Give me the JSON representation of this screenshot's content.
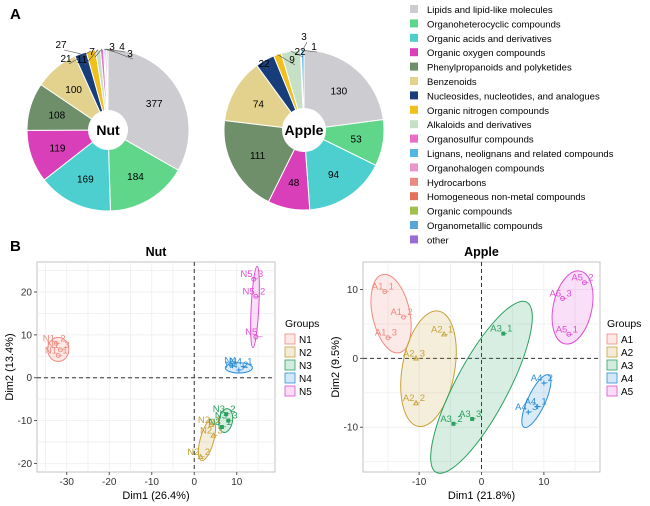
{
  "panels": {
    "a": "A",
    "b": "B"
  },
  "pie_legend": [
    {
      "label": "Lipids and lipid-like molecules",
      "color": "#cdcdd1"
    },
    {
      "label": "Organoheterocyclic compounds",
      "color": "#5fd68a"
    },
    {
      "label": "Organic acids and derivatives",
      "color": "#4dcfd0"
    },
    {
      "label": "Organic oxygen compounds",
      "color": "#d83fb8"
    },
    {
      "label": "Phenylpropanoids and polyketides",
      "color": "#6e8f6a"
    },
    {
      "label": "Benzenoids",
      "color": "#e2d28d"
    },
    {
      "label": "Nucleosides, nucleotides, and analogues",
      "color": "#173e7a"
    },
    {
      "label": "Organic nitrogen compounds",
      "color": "#f0c01e"
    },
    {
      "label": "Alkaloids and derivatives",
      "color": "#c6e0c6"
    },
    {
      "label": "Organosulfur compounds",
      "color": "#e86cc8"
    },
    {
      "label": "Lignans, neolignans and related compounds",
      "color": "#55b5e6"
    },
    {
      "label": "Organohalogen compounds",
      "color": "#e996cf"
    },
    {
      "label": "Hydrocarbons",
      "color": "#e98b82"
    },
    {
      "label": "Homogeneous non-metal compounds",
      "color": "#e5705c"
    },
    {
      "label": "Organic compounds",
      "color": "#9fc04a"
    },
    {
      "label": "Organometallic compounds",
      "color": "#58a6d6"
    },
    {
      "label": "other",
      "color": "#9b6cd6"
    }
  ],
  "scatter_legend": {
    "title": "Groups",
    "nut": [
      {
        "label": "N1",
        "color": "#f08a7e"
      },
      {
        "label": "N2",
        "color": "#c7a23a"
      },
      {
        "label": "N3",
        "color": "#2aa15f"
      },
      {
        "label": "N4",
        "color": "#2d8ed6"
      },
      {
        "label": "N5",
        "color": "#df4fd4"
      }
    ],
    "apple": [
      {
        "label": "A1",
        "color": "#f08a7e"
      },
      {
        "label": "A2",
        "color": "#c7a23a"
      },
      {
        "label": "A3",
        "color": "#2aa15f"
      },
      {
        "label": "A4",
        "color": "#2d8ed6"
      },
      {
        "label": "A5",
        "color": "#df4fd4"
      }
    ]
  },
  "chart_data": [
    {
      "type": "pie",
      "title": "Nut",
      "values": [
        377,
        184,
        169,
        119,
        108,
        100,
        27,
        21,
        11,
        7,
        3,
        4,
        3
      ],
      "labels": [
        "377",
        "184",
        "169",
        "119",
        "108",
        "100",
        "27",
        "21",
        "11",
        "7",
        "3",
        "4",
        "3"
      ],
      "colors": [
        "#cdcdd1",
        "#5fd68a",
        "#4dcfd0",
        "#d83fb8",
        "#6e8f6a",
        "#e2d28d",
        "#173e7a",
        "#f0c01e",
        "#c6e0c6",
        "#e86cc8",
        "#55b5e6",
        "#e996cf",
        "#e98b82"
      ]
    },
    {
      "type": "pie",
      "title": "Apple",
      "values": [
        130,
        53,
        94,
        48,
        111,
        74,
        22,
        9,
        22,
        1,
        3
      ],
      "labels": [
        "130",
        "53",
        "94",
        "48",
        "111",
        "74",
        "22",
        "9",
        "22",
        "1",
        "3"
      ],
      "colors": [
        "#cdcdd1",
        "#5fd68a",
        "#4dcfd0",
        "#d83fb8",
        "#6e8f6a",
        "#e2d28d",
        "#173e7a",
        "#f0c01e",
        "#c6e0c6",
        "#e86cc8",
        "#55b5e6"
      ]
    },
    {
      "type": "scatter",
      "title": "Nut",
      "xlabel": "Dim1 (26.4%)",
      "ylabel": "Dim2 (13.4%)",
      "xlim": [
        -37,
        19
      ],
      "ylim": [
        -22,
        27
      ],
      "xticks": [
        -30,
        -20,
        -10,
        0,
        10
      ],
      "yticks": [
        -20,
        -10,
        0,
        10,
        20
      ],
      "grid": true,
      "series": [
        {
          "name": "N1",
          "color": "#f08a7e",
          "points": [
            {
              "label": "N1_2",
              "x": -32.5,
              "y": 8.0
            },
            {
              "label": "N1_3",
              "x": -31.5,
              "y": 6.5
            },
            {
              "label": "N1_1",
              "x": -32.0,
              "y": 5.2
            }
          ]
        },
        {
          "name": "N2",
          "color": "#c7a23a",
          "points": [
            {
              "label": "N2_1",
              "x": 4.0,
              "y": -11.0
            },
            {
              "label": "N2_3",
              "x": 4.5,
              "y": -13.5
            },
            {
              "label": "N2_2",
              "x": 1.5,
              "y": -18.5
            }
          ]
        },
        {
          "name": "N3",
          "color": "#2aa15f",
          "points": [
            {
              "label": "N3_2",
              "x": 7.5,
              "y": -8.5
            },
            {
              "label": "N3_3",
              "x": 8.0,
              "y": -10.0
            },
            {
              "label": "N3_1",
              "x": 6.5,
              "y": -11.5
            }
          ]
        },
        {
          "name": "N4",
          "color": "#2d8ed6",
          "points": [
            {
              "label": "N4",
              "x": 9.0,
              "y": 2.8
            },
            {
              "label": "N4_1",
              "x": 11.5,
              "y": 2.6
            },
            {
              "label": "N4_2",
              "x": 10.5,
              "y": 1.8
            }
          ]
        },
        {
          "name": "N5",
          "color": "#df4fd4",
          "points": [
            {
              "label": "N5_3",
              "x": 14.0,
              "y": 23.0
            },
            {
              "label": "N5_2",
              "x": 14.5,
              "y": 19.0
            },
            {
              "label": "N5_",
              "x": 14.5,
              "y": 9.5
            }
          ]
        }
      ]
    },
    {
      "type": "scatter",
      "title": "Apple",
      "xlabel": "Dim1 (21.8%)",
      "ylabel": "Dim2 (9.5%)",
      "xlim": [
        -19,
        19
      ],
      "ylim": [
        -16.5,
        14
      ],
      "xticks": [
        -10,
        0,
        10
      ],
      "yticks": [
        -10,
        0,
        10
      ],
      "grid": true,
      "series": [
        {
          "name": "A1",
          "color": "#f08a7e",
          "points": [
            {
              "label": "A1_1",
              "x": -15.5,
              "y": 9.7
            },
            {
              "label": "A1_2",
              "x": -12.5,
              "y": 6.0
            },
            {
              "label": "A1_3",
              "x": -15.0,
              "y": 3.0
            }
          ]
        },
        {
          "name": "A2",
          "color": "#c7a23a",
          "points": [
            {
              "label": "A2_1",
              "x": -6.0,
              "y": 3.5
            },
            {
              "label": "A2_3",
              "x": -10.5,
              "y": 0.0
            },
            {
              "label": "A2_2",
              "x": -10.5,
              "y": -6.5
            }
          ]
        },
        {
          "name": "A3",
          "color": "#2aa15f",
          "points": [
            {
              "label": "A3_1",
              "x": 3.5,
              "y": 3.6
            },
            {
              "label": "A3_3",
              "x": -1.5,
              "y": -8.8
            },
            {
              "label": "A3_2",
              "x": -4.5,
              "y": -9.5
            }
          ]
        },
        {
          "name": "A4",
          "color": "#2d8ed6",
          "points": [
            {
              "label": "A4_2",
              "x": 10.0,
              "y": -3.6
            },
            {
              "label": "A4_1",
              "x": 9.0,
              "y": -7.0
            },
            {
              "label": "A4_3",
              "x": 7.5,
              "y": -7.8
            }
          ]
        },
        {
          "name": "A5",
          "color": "#df4fd4",
          "points": [
            {
              "label": "A5_2",
              "x": 16.5,
              "y": 11.0
            },
            {
              "label": "A5_3",
              "x": 13.0,
              "y": 8.7
            },
            {
              "label": "A5_1",
              "x": 14.0,
              "y": 3.5
            }
          ]
        }
      ]
    }
  ]
}
